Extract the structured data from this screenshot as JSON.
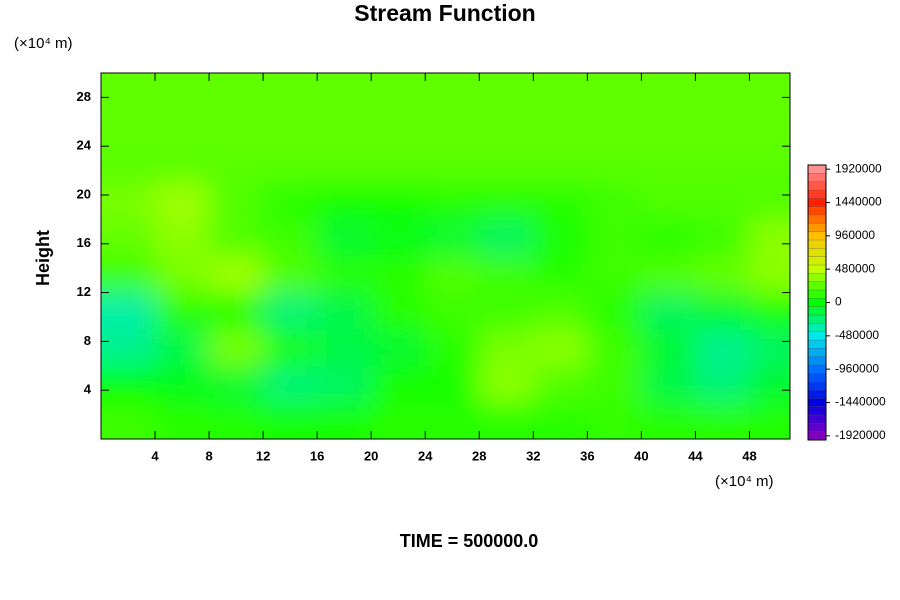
{
  "chart_data": {
    "type": "contour",
    "title": "Stream Function",
    "ylabel": "Height",
    "xunit": "(×10⁴ m)",
    "yunit": "(×10⁴ m)",
    "footer": "TIME = 500000.0",
    "xlim": [
      0,
      51
    ],
    "ylim": [
      0,
      30
    ],
    "xticks": [
      4,
      8,
      12,
      16,
      20,
      24,
      28,
      32,
      36,
      40,
      44,
      48
    ],
    "yticks": [
      4,
      8,
      12,
      16,
      20,
      24,
      28
    ],
    "x": [
      2,
      6,
      10,
      14,
      18,
      22,
      26,
      30,
      34,
      38,
      42,
      46,
      50
    ],
    "y": [
      1.5,
      4.5,
      7.5,
      10.5,
      13.5,
      16.5,
      19.5,
      22.5,
      25.5,
      28.5
    ],
    "z": [
      [
        150000,
        100000,
        80000,
        50000,
        50000,
        100000,
        100000,
        100000,
        100000,
        120000,
        100000,
        100000,
        80000
      ],
      [
        0,
        -50000,
        -100000,
        -250000,
        -200000,
        50000,
        50000,
        350000,
        200000,
        150000,
        -150000,
        -250000,
        -100000
      ],
      [
        -300000,
        -150000,
        300000,
        50000,
        -150000,
        -100000,
        100000,
        300000,
        350000,
        150000,
        -100000,
        -300000,
        -200000
      ],
      [
        -350000,
        100000,
        50000,
        -250000,
        -150000,
        100000,
        150000,
        150000,
        200000,
        100000,
        -200000,
        -100000,
        50000
      ],
      [
        150000,
        300000,
        400000,
        200000,
        100000,
        100000,
        200000,
        150000,
        100000,
        150000,
        200000,
        250000,
        350000
      ],
      [
        250000,
        350000,
        200000,
        150000,
        -100000,
        -50000,
        -100000,
        -200000,
        50000,
        150000,
        100000,
        150000,
        350000
      ],
      [
        300000,
        400000,
        200000,
        100000,
        50000,
        50000,
        100000,
        100000,
        100000,
        150000,
        200000,
        200000,
        200000
      ],
      [
        220000,
        220000,
        220000,
        220000,
        220000,
        220000,
        220000,
        220000,
        220000,
        220000,
        220000,
        220000,
        220000
      ],
      [
        240000,
        240000,
        240000,
        240000,
        240000,
        240000,
        240000,
        240000,
        240000,
        240000,
        240000,
        240000,
        240000
      ],
      [
        240000,
        240000,
        240000,
        240000,
        240000,
        240000,
        240000,
        240000,
        240000,
        240000,
        240000,
        240000,
        240000
      ]
    ],
    "clim": [
      -1980000,
      1980000
    ],
    "cticks": [
      -1920000,
      -1440000,
      -960000,
      -480000,
      0,
      480000,
      960000,
      1440000,
      1920000
    ],
    "colormap": [
      "#8000c0",
      "#0000e0",
      "#0070ff",
      "#00e8e8",
      "#00ff00",
      "#c0ff00",
      "#ffc000",
      "#ff2000",
      "#ff9090"
    ]
  }
}
